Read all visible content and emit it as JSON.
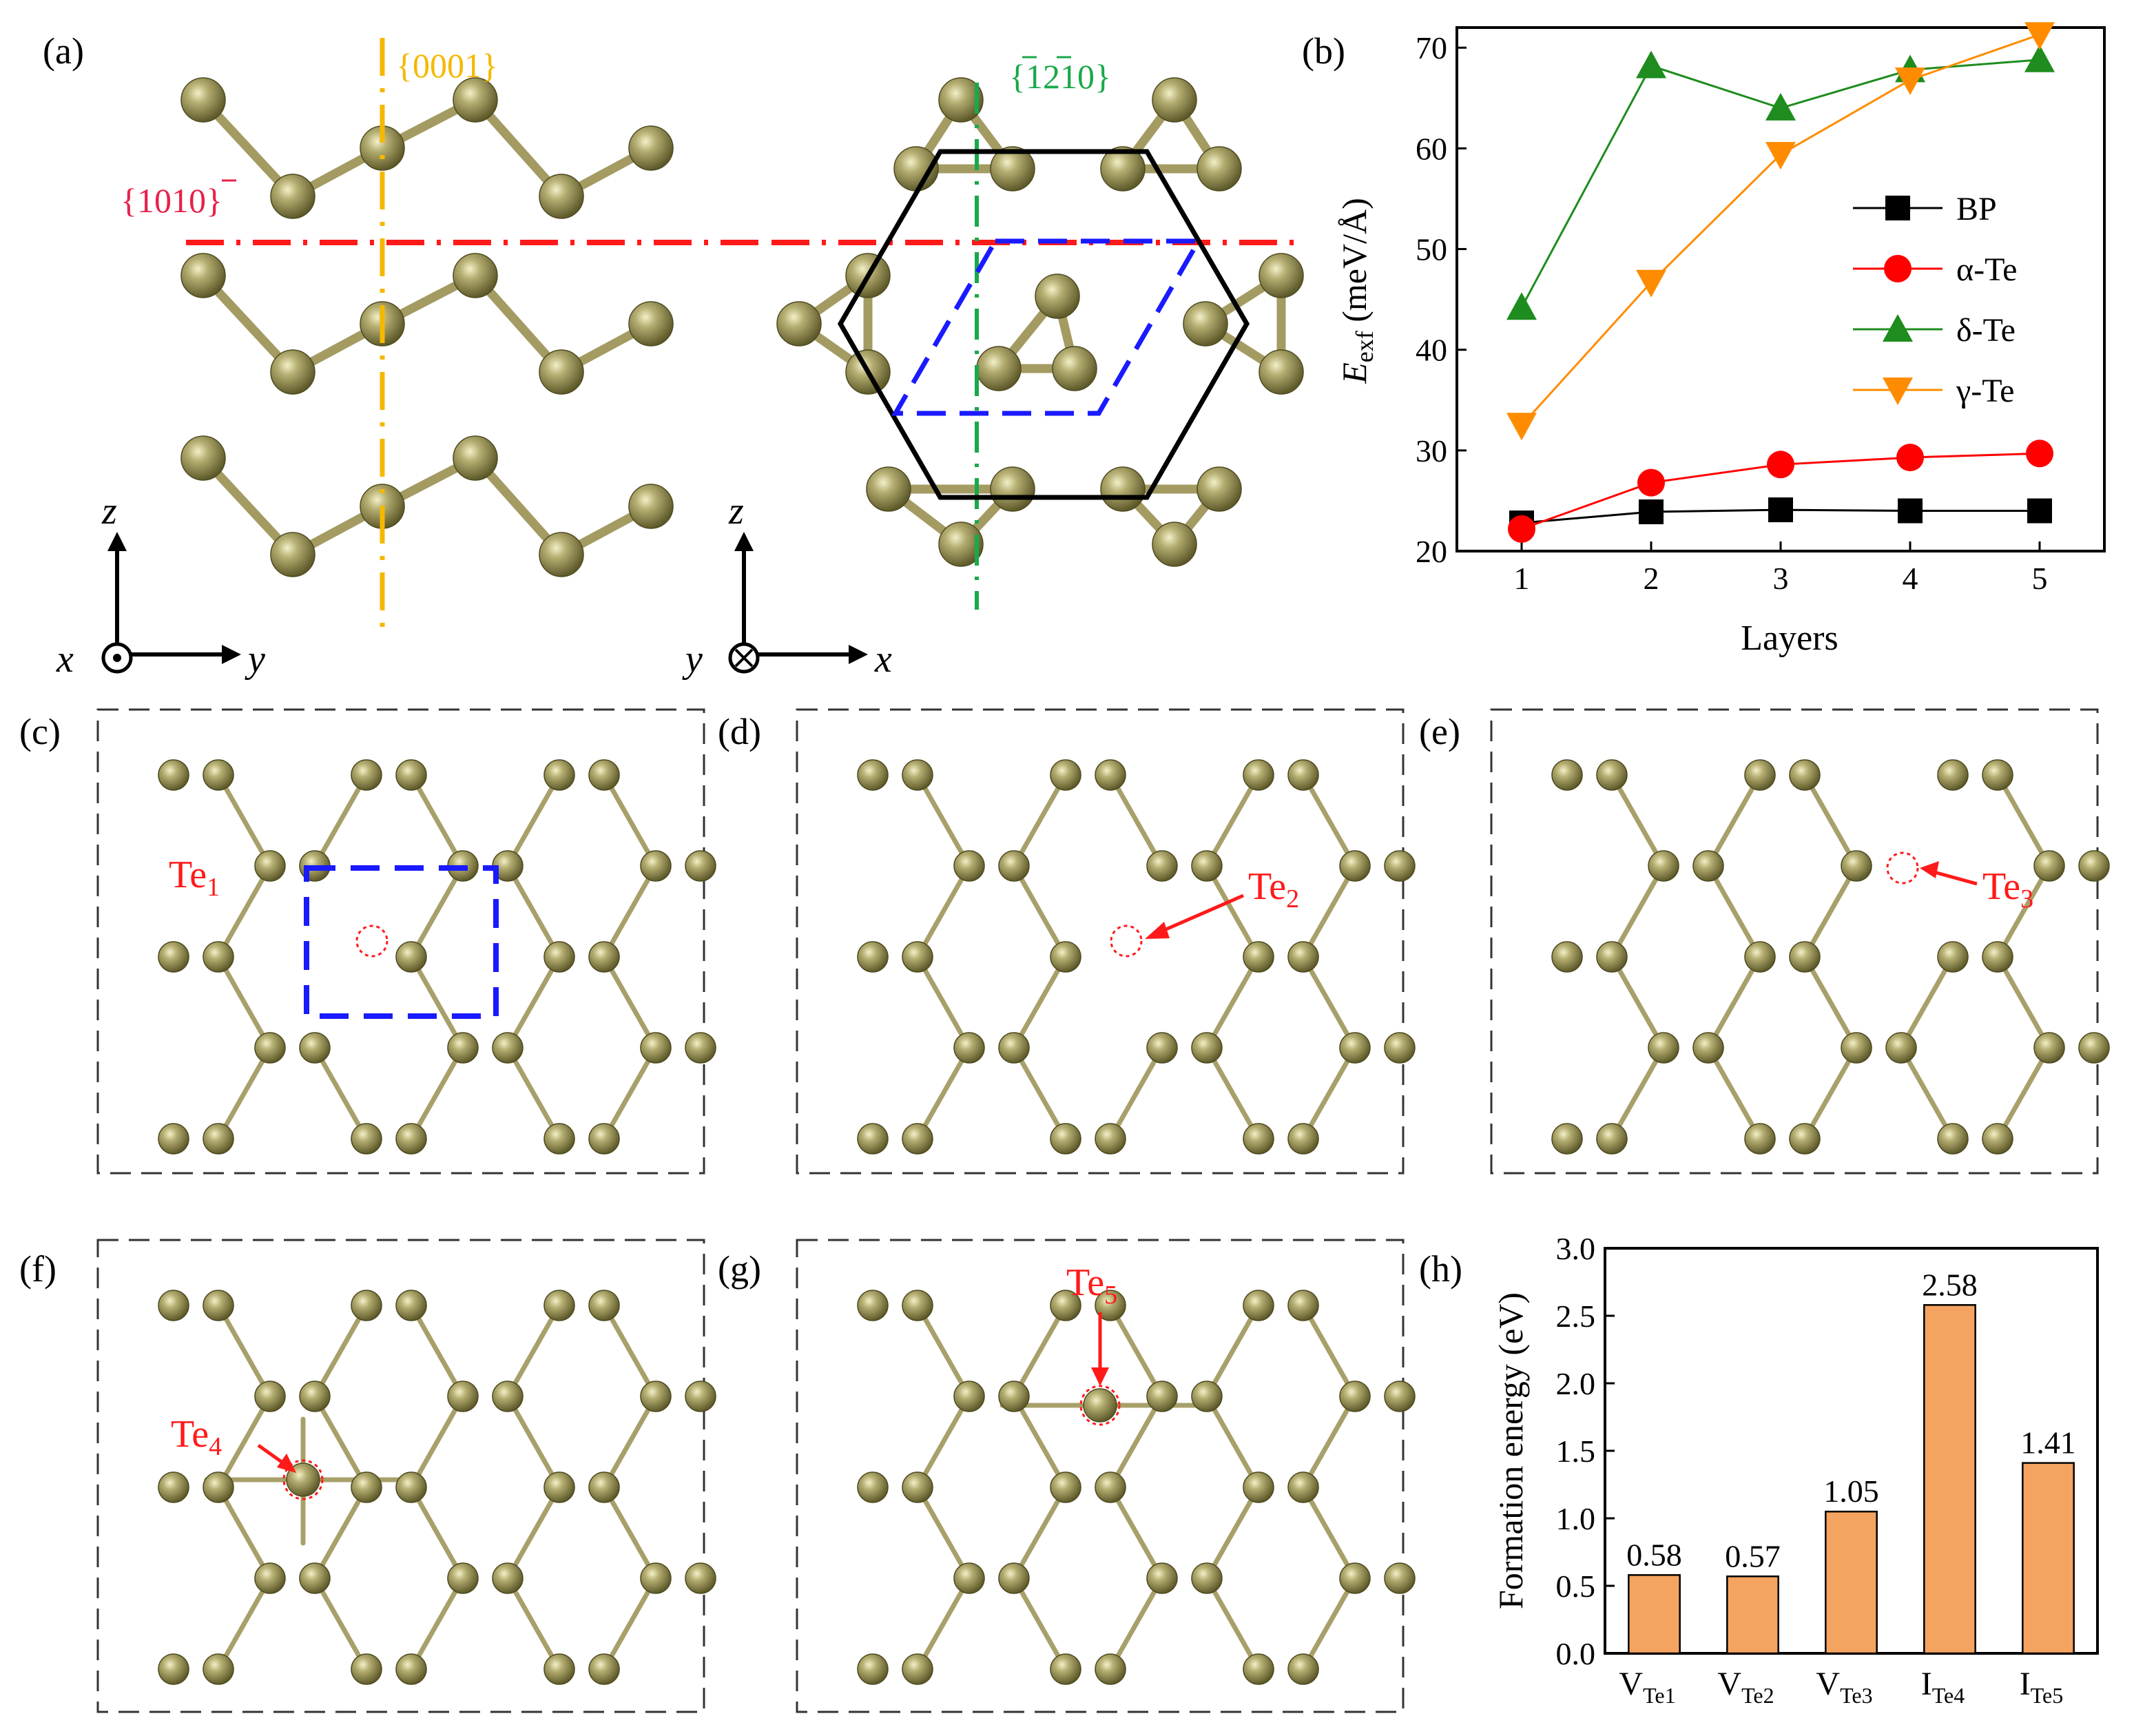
{
  "panel_labels": {
    "a": "(a)",
    "b": "(b)",
    "c": "(c)",
    "d": "(d)",
    "e": "(e)",
    "f": "(f)",
    "g": "(g)",
    "h": "(h)"
  },
  "panel_a": {
    "plane_0001": "{0001}",
    "plane_1010": "{1010}",
    "plane_1210": "{1210}",
    "axes_left": {
      "z": "z",
      "x": "x",
      "y": "y"
    },
    "axes_right": {
      "z": "z",
      "x": "x",
      "y": "y"
    }
  },
  "defects": {
    "te1": {
      "main": "Te",
      "sub": "1"
    },
    "te2": {
      "main": "Te",
      "sub": "2"
    },
    "te3": {
      "main": "Te",
      "sub": "3"
    },
    "te4": {
      "main": "Te",
      "sub": "4"
    },
    "te5": {
      "main": "Te",
      "sub": "5"
    }
  },
  "colors": {
    "atom": "#8f8a4e",
    "bond": "#a8a06a",
    "red": "#ff1a1a",
    "blue": "#1a1aff",
    "orange": "#f0a868",
    "green": "#1e8c1e",
    "yellow": "#f5b800"
  },
  "chart_data": [
    {
      "type": "line",
      "title": "",
      "xlabel": "Layers",
      "ylabel_main": "E",
      "ylabel_sub": "exf",
      "ylabel_unit": " (meV/Å)",
      "x": [
        1,
        2,
        3,
        4,
        5
      ],
      "xlim": [
        0.5,
        5.5
      ],
      "ylim": [
        20,
        72
      ],
      "xticks": [
        1,
        2,
        3,
        4,
        5
      ],
      "yticks": [
        20,
        30,
        40,
        50,
        60,
        70
      ],
      "legend_position": "center-right",
      "series": [
        {
          "name": "BP",
          "color": "#000000",
          "marker": "square",
          "values": [
            22.8,
            23.9,
            24.1,
            24.0,
            24.0
          ]
        },
        {
          "name": "α-Te",
          "color": "#ff0000",
          "marker": "circle",
          "values": [
            22.2,
            26.8,
            28.6,
            29.3,
            29.7
          ]
        },
        {
          "name": "δ-Te",
          "color": "#1e8c1e",
          "marker": "triangle-up",
          "values": [
            44.2,
            68.2,
            64.0,
            67.8,
            68.8
          ]
        },
        {
          "name": "γ-Te",
          "color": "#ff8c00",
          "marker": "triangle-down",
          "values": [
            32.5,
            46.7,
            59.4,
            66.8,
            71.3
          ]
        }
      ]
    },
    {
      "type": "bar",
      "title": "",
      "xlabel": "",
      "ylabel": "Formation energy (eV)",
      "categories": [
        {
          "main": "V",
          "sub": "Te1"
        },
        {
          "main": "V",
          "sub": "Te2"
        },
        {
          "main": "V",
          "sub": "Te3"
        },
        {
          "main": "I",
          "sub": "Te4"
        },
        {
          "main": "I",
          "sub": "Te5"
        }
      ],
      "values": [
        0.58,
        0.57,
        1.05,
        2.58,
        1.41
      ],
      "value_labels": [
        "0.58",
        "0.57",
        "1.05",
        "2.58",
        "1.41"
      ],
      "ylim": [
        0,
        3.0
      ],
      "yticks": [
        "0.0",
        "0.5",
        "1.0",
        "1.5",
        "2.0",
        "2.5",
        "3.0"
      ],
      "bar_color": "#f4a460"
    }
  ]
}
